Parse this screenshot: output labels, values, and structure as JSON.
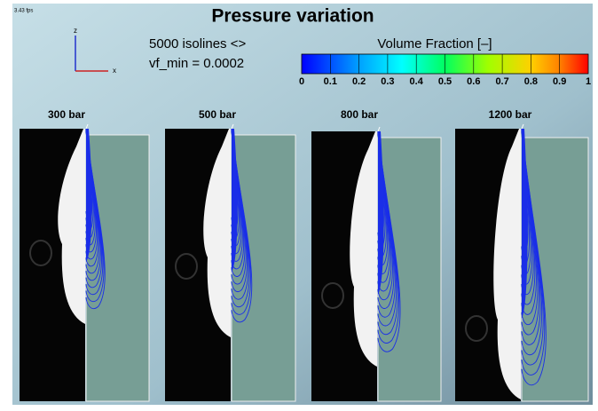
{
  "header": {
    "fps": "3.43 fps",
    "title": "Pressure variation",
    "isolines": "5000 isolines <>",
    "vf_min": "vf_min = 0.0002"
  },
  "axes": {
    "z": "z",
    "x": "x"
  },
  "colorbar": {
    "title": "Volume Fraction [–]",
    "ticks": [
      0,
      0.1,
      0.2,
      0.3,
      0.4,
      0.5,
      0.6,
      0.7,
      0.8,
      0.9,
      1
    ]
  },
  "panels": [
    {
      "label": "300 bar"
    },
    {
      "label": "500 bar"
    },
    {
      "label": "800 bar"
    },
    {
      "label": "1200 bar"
    }
  ]
}
